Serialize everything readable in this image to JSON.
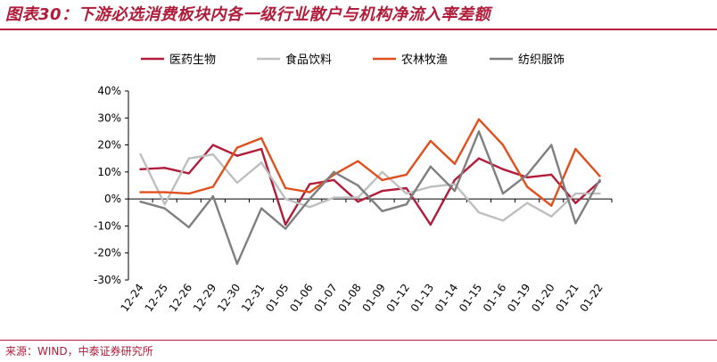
{
  "title": "图表30：下游必选消费板块内各一级行业散户与机构净流入率差额",
  "source": "来源：WIND，中泰证券研究所",
  "chart_data": {
    "type": "line",
    "title": "",
    "xlabel": "",
    "ylabel": "",
    "ylim": [
      -30,
      40
    ],
    "yticks": [
      "40%",
      "30%",
      "20%",
      "10%",
      "0%",
      "-10%",
      "-20%",
      "-30%"
    ],
    "grid": false,
    "legend_position": "top",
    "categories": [
      "12-24",
      "12-25",
      "12-26",
      "12-29",
      "12-30",
      "12-31",
      "01-05",
      "01-06",
      "01-07",
      "01-08",
      "01-09",
      "01-12",
      "01-13",
      "01-14",
      "01-15",
      "01-16",
      "01-19",
      "01-20",
      "01-21",
      "01-22"
    ],
    "series": [
      {
        "name": "医药生物",
        "color": "#b01c3a",
        "values": [
          11,
          11.5,
          9.5,
          20,
          16,
          18.5,
          -9.5,
          5.5,
          7,
          -1,
          3,
          4,
          -9.5,
          7,
          15,
          11,
          8,
          9,
          -1.5,
          6.5
        ]
      },
      {
        "name": "食品饮料",
        "color": "#bfbfbf",
        "values": [
          16.5,
          -2,
          15,
          16.5,
          6,
          13.5,
          0,
          -3,
          0.5,
          0.5,
          10,
          2,
          4.5,
          5.5,
          -5,
          -8,
          -1.5,
          -6.5,
          2,
          2
        ]
      },
      {
        "name": "农林牧渔",
        "color": "#e0501e",
        "values": [
          2.5,
          2.5,
          2,
          4.5,
          19,
          22.5,
          4,
          2.5,
          9,
          14,
          7,
          9,
          21.5,
          13,
          29.5,
          20,
          4.5,
          -2.5,
          18.5,
          8.5
        ]
      },
      {
        "name": "纺织服饰",
        "color": "#7f7f7f",
        "values": [
          -1,
          -3.5,
          -10.5,
          1,
          -24,
          -3.5,
          -11,
          0,
          10,
          5,
          -4.5,
          -2,
          12,
          3,
          25,
          2,
          9,
          20,
          -9,
          7
        ]
      }
    ]
  }
}
